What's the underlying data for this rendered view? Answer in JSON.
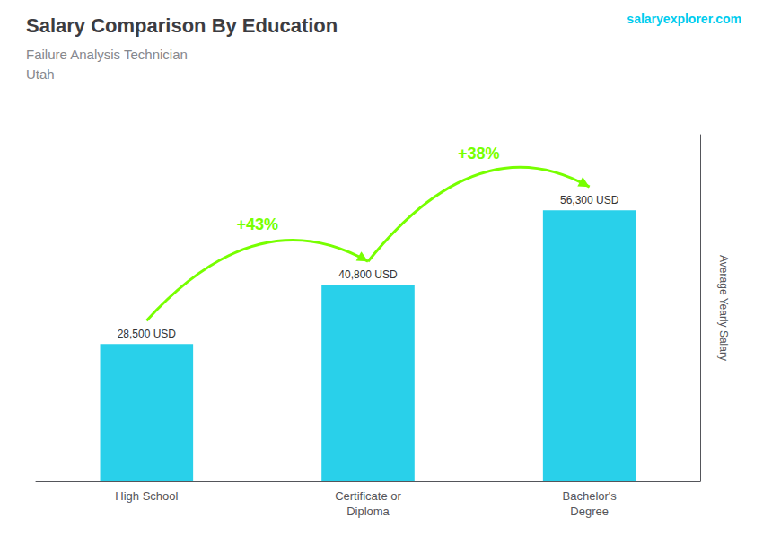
{
  "chart_data": {
    "type": "bar",
    "title": "Salary Comparison By Education",
    "subtitle": [
      "Failure Analysis Technician",
      "Utah"
    ],
    "categories": [
      "High School",
      "Certificate or\nDiploma",
      "Bachelor's\nDegree"
    ],
    "values": [
      28500,
      40800,
      56300
    ],
    "value_labels": [
      "28,500 USD",
      "40,800 USD",
      "56,300 USD"
    ],
    "data_labels": true,
    "color": "#29d0ea",
    "ylim": [
      0,
      72000
    ],
    "ylabel": "Average Yearly Salary",
    "tick_labels": "x",
    "grid": false,
    "annotations": [
      {
        "text": "+43%",
        "from": "High School",
        "to": "Certificate or\nDiploma",
        "color": "#77ff00"
      },
      {
        "text": "+38%",
        "from": "Certificate or\nDiploma",
        "to": "Bachelor's\nDegree",
        "color": "#77ff00"
      },
      {
        "text": "salaryexplorer.com",
        "color": "#00ccee"
      }
    ]
  }
}
